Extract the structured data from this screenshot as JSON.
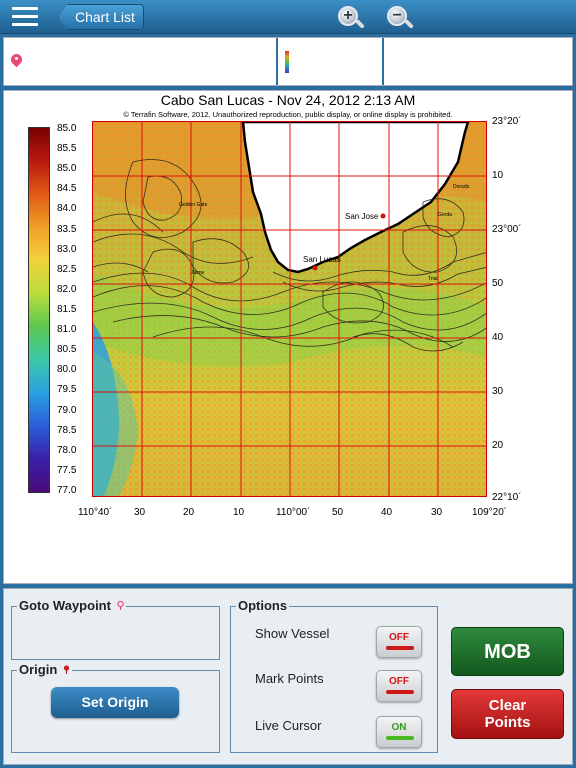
{
  "topbar": {
    "chart_list_label": "Chart List"
  },
  "chart": {
    "title": "Cabo San Lucas - Nov 24, 2012 2:13 AM",
    "copyright": "© Terrafin Software,  2012.  Unauthorized reproduction, public display, or online display is prohibited.",
    "colorbar_labels": [
      "85.0",
      "85.5",
      "85.0",
      "84.5",
      "84.0",
      "83.5",
      "83.0",
      "82.5",
      "82.0",
      "81.5",
      "81.0",
      "80.5",
      "80.0",
      "79.5",
      "79.0",
      "78.5",
      "78.0",
      "77.5",
      "77.0"
    ],
    "x_ticks": [
      "110°40´",
      "30",
      "20",
      "10",
      "110°00´",
      "50",
      "40",
      "30",
      "109°20´"
    ],
    "y_ticks": [
      "23°20´",
      "10",
      "23°00´",
      "50",
      "40",
      "30",
      "20",
      "22°10´"
    ],
    "places": [
      {
        "name": "San Jose"
      },
      {
        "name": "San Lucas"
      },
      {
        "name": "Golden Gate"
      },
      {
        "name": "Jaime"
      },
      {
        "name": "Gorda"
      },
      {
        "name": "Trial"
      },
      {
        "name": "Dorado"
      }
    ]
  },
  "bottom": {
    "goto_waypoint_title": "Goto Waypoint",
    "origin_title": "Origin",
    "set_origin_label": "Set Origin",
    "options_title": "Options",
    "options": [
      {
        "label": "Show Vessel",
        "state": "OFF"
      },
      {
        "label": "Mark Points",
        "state": "OFF"
      },
      {
        "label": "Live Cursor",
        "state": "ON"
      }
    ],
    "mob_label": "MOB",
    "clear_points_label_1": "Clear",
    "clear_points_label_2": "Points"
  },
  "colors": {
    "accent": "#2a6fa0",
    "mob": "#1f7a2e",
    "clear": "#c41c1c",
    "grid": "#e01010"
  }
}
